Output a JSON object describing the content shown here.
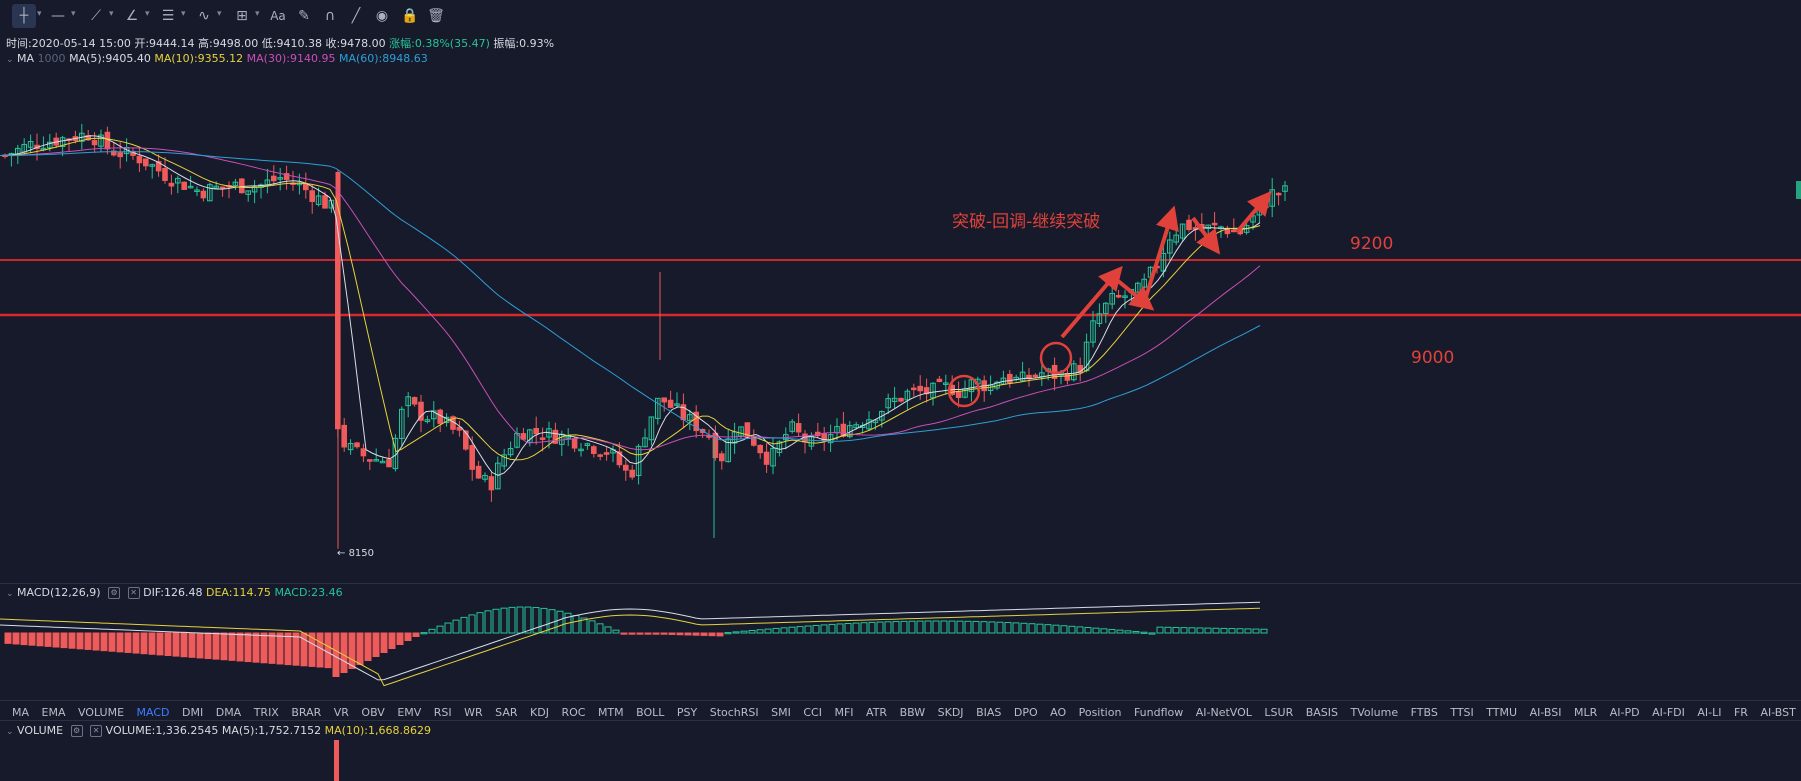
{
  "toolbar": {
    "tools": [
      {
        "icon": "crosshair-icon",
        "active": true
      },
      {
        "icon": "horizontal-line-icon"
      },
      {
        "icon": "trend-line-icon"
      },
      {
        "icon": "angle-icon"
      },
      {
        "icon": "parallel-lines-icon"
      },
      {
        "icon": "wave-pattern-icon"
      },
      {
        "icon": "measure-icon"
      },
      {
        "icon": "text-icon",
        "label": "Aa"
      },
      {
        "icon": "annotation-icon"
      },
      {
        "icon": "magnet-icon"
      },
      {
        "icon": "ruler-icon"
      },
      {
        "icon": "eye-icon"
      },
      {
        "icon": "lock-icon"
      },
      {
        "icon": "trash-icon"
      }
    ]
  },
  "ohlc": {
    "time": "时间:2020-05-14 15:00",
    "open": "开:9444.14",
    "high": "高:9498.00",
    "low": "低:9410.38",
    "close": "收:9478.00",
    "change": "涨幅:0.38%(35.47)",
    "amplitude": "振幅:0.93%"
  },
  "ma_legend": {
    "title": "MA",
    "ma5": "MA(5):9405.40",
    "ma10": "MA(10):9355.12",
    "ma30": "MA(30):9140.95",
    "ma60": "MA(60):8948.63"
  },
  "annotations": {
    "pattern": "突破-回调-继续突破",
    "level_9200": "9200",
    "level_9000": "9000",
    "low_marker": "8150"
  },
  "macd_legend": {
    "title": "MACD(12,26,9)",
    "dif": "DIF:126.48",
    "dea": "DEA:114.75",
    "macd": "MACD:23.46"
  },
  "indicator_tabs": [
    "MA",
    "EMA",
    "VOLUME",
    "MACD",
    "DMI",
    "DMA",
    "TRIX",
    "BRAR",
    "VR",
    "OBV",
    "EMV",
    "RSI",
    "WR",
    "SAR",
    "KDJ",
    "ROC",
    "MTM",
    "BOLL",
    "PSY",
    "StochRSI",
    "SMI",
    "CCI",
    "MFI",
    "ATR",
    "BBW",
    "SKDJ",
    "BIAS",
    "DPO",
    "AO",
    "Position",
    "Fundflow",
    "AI-NetVOL",
    "LSUR",
    "BASIS",
    "TVolume",
    "FTBS",
    "TTSI",
    "TTMU",
    "AI-BSI",
    "MLR",
    "AI-PD",
    "AI-FDI",
    "AI-LI",
    "FR",
    "AI-BST"
  ],
  "active_tab": "MACD",
  "volume_legend": {
    "title": "VOLUME",
    "volume": "VOLUME:1,336.2545",
    "ma5": "MA(5):1,752.7152",
    "ma10": "MA(10):1,668.8629"
  },
  "colors": {
    "up": "#26c499",
    "down": "#ef5a5a",
    "ma5": "#d9dde6",
    "ma10": "#e6d23c",
    "ma30": "#c94fb7",
    "ma60": "#2e9fd6",
    "annotation": "#e0413a",
    "active_tab": "#3d7dff"
  }
}
